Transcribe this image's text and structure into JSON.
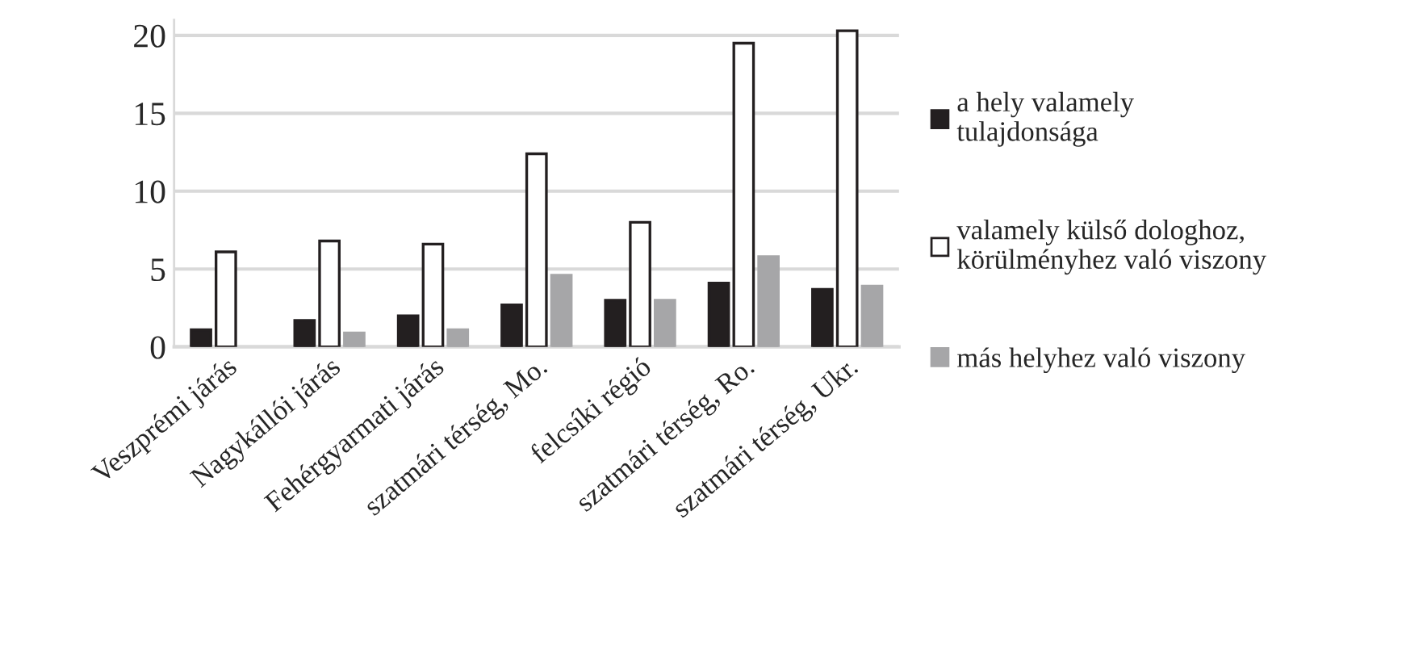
{
  "chart_data": {
    "type": "bar",
    "categories": [
      "Veszprémi járás",
      "Nagykállói járás",
      "Fehérgyarmati járás",
      "szatmári térség, Mo.",
      "felcsíki régió",
      "szatmári térség, Ro.",
      "szatmári térség, Ukr."
    ],
    "series": [
      {
        "name": "a hely valamely\ntulajdonsága",
        "color": "#231f20",
        "values": [
          1.1,
          1.7,
          2.0,
          2.7,
          3.0,
          4.1,
          3.7
        ]
      },
      {
        "name": "valamely külső dologhoz,\nkörülményhez való viszony",
        "color": "#ffffff",
        "values": [
          6.1,
          6.8,
          6.6,
          12.4,
          8.0,
          19.5,
          20.3
        ]
      },
      {
        "name": "más helyhez való viszony",
        "color": "#a6a6a8",
        "values": [
          null,
          0.9,
          1.1,
          4.6,
          3.0,
          5.8,
          3.9
        ]
      }
    ],
    "ylim": [
      0,
      21
    ],
    "yticks": [
      0,
      5,
      10,
      15,
      20
    ],
    "grid": "y",
    "legend": "right"
  }
}
